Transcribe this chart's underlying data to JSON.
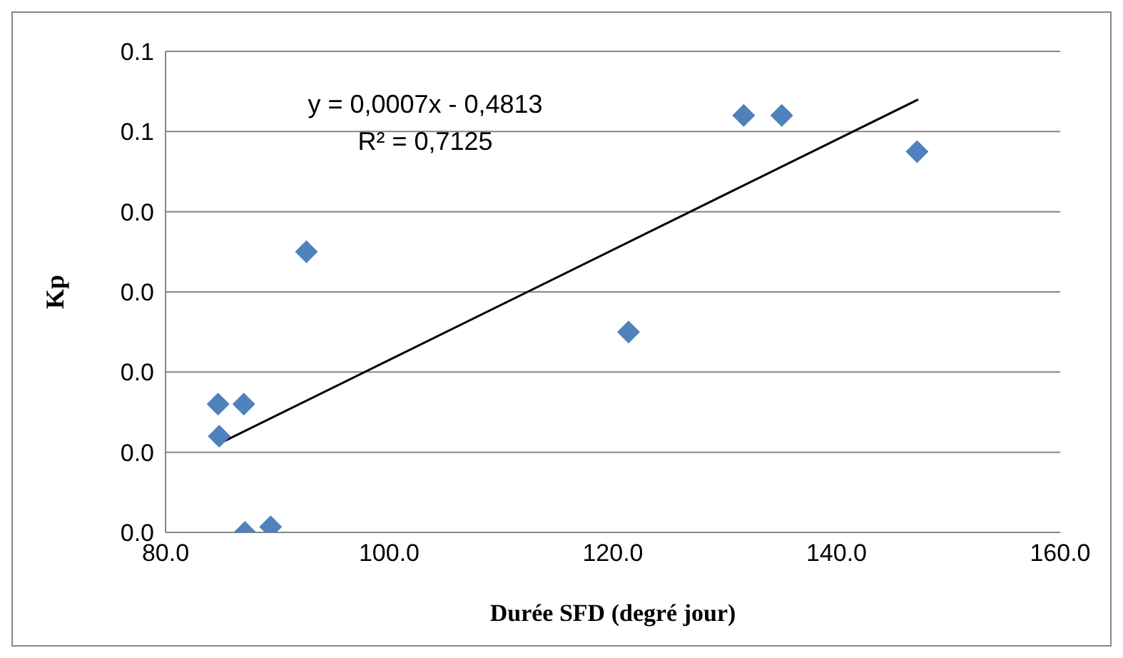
{
  "chart_data": {
    "type": "scatter",
    "xlabel": "Durée SFD (degré jour)",
    "ylabel": "Kp",
    "series": [
      {
        "color": "#4f81bd",
        "marker": "diamond",
        "x": [
          84.7,
          87.0,
          84.8,
          87.1,
          89.4,
          92.6,
          121.4,
          131.7,
          135.1,
          147.2
        ],
        "values": [
          0.016,
          0.016,
          0.012,
          0.0,
          0.0007,
          0.035,
          0.025,
          0.052,
          0.052,
          0.0475
        ]
      },
      {
        "type": "line",
        "color": "#000000",
        "x": [
          84.7,
          147.3
        ],
        "values": [
          0.011,
          0.054
        ]
      }
    ],
    "xlim": [
      80,
      160
    ],
    "xticks": [
      {
        "value": 80,
        "label": "80.0"
      },
      {
        "value": 100,
        "label": "100.0"
      },
      {
        "value": 120,
        "label": "120.0"
      },
      {
        "value": 140,
        "label": "140.0"
      },
      {
        "value": 160,
        "label": "160.0"
      }
    ],
    "ylim": [
      0,
      0.06
    ],
    "yticks": [
      {
        "value": 0,
        "label": "0.0"
      },
      {
        "value": 0.01,
        "label": "0.0"
      },
      {
        "value": 0.02,
        "label": "0.0"
      },
      {
        "value": 0.03,
        "label": "0.0"
      },
      {
        "value": 0.04,
        "label": "0.0"
      },
      {
        "value": 0.05,
        "label": "0.1"
      },
      {
        "value": 0.06,
        "label": "0.1"
      }
    ],
    "grid": "y",
    "annotations": [
      "y = 0,0007x - 0,4813",
      "R² = 0,7125"
    ]
  }
}
